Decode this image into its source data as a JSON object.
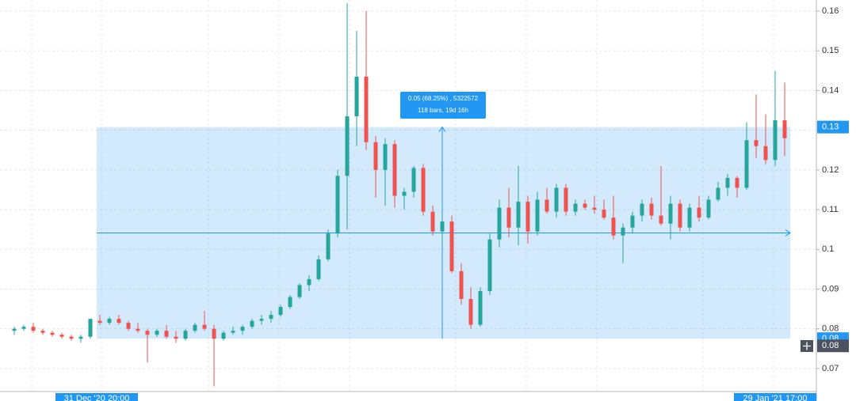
{
  "chart_data": {
    "type": "candlestick",
    "ylim": [
      0.0642,
      0.1628
    ],
    "yticks": [
      0.07,
      0.08,
      0.09,
      0.1,
      0.11,
      0.12,
      0.13,
      0.14,
      0.15,
      0.16
    ],
    "grid": true,
    "up_color": "#26a69a",
    "down_color": "#ef5350",
    "candles": {
      "open": [
        0.0795,
        0.08,
        0.0805,
        0.0795,
        0.079,
        0.0785,
        0.078,
        0.0775,
        0.078,
        0.082,
        0.0815,
        0.0825,
        0.0815,
        0.08,
        0.0795,
        0.0785,
        0.0795,
        0.078,
        0.0775,
        0.0795,
        0.081,
        0.08,
        0.0775,
        0.079,
        0.0795,
        0.0805,
        0.082,
        0.0825,
        0.0835,
        0.0855,
        0.088,
        0.091,
        0.0925,
        0.0975,
        0.104,
        0.1185,
        0.1335,
        0.1435,
        0.127,
        0.12,
        0.1265,
        0.1135,
        0.1145,
        0.1205,
        0.1095,
        0.1045,
        0.107,
        0.0945,
        0.0875,
        0.081,
        0.0895,
        0.1025,
        0.1105,
        0.1055,
        0.112,
        0.1045,
        0.1125,
        0.1095,
        0.1155,
        0.1095,
        0.1115,
        0.1105,
        0.11,
        0.108,
        0.1035,
        0.1055,
        0.1085,
        0.1115,
        0.1085,
        0.1065,
        0.1115,
        0.1055,
        0.1105,
        0.108,
        0.1125,
        0.1155,
        0.118,
        0.1155,
        0.1275,
        0.126,
        0.1225,
        0.1325
      ],
      "high": [
        0.0805,
        0.081,
        0.0815,
        0.08,
        0.0795,
        0.079,
        0.0785,
        0.0785,
        0.0825,
        0.0835,
        0.083,
        0.0835,
        0.082,
        0.0815,
        0.08,
        0.08,
        0.081,
        0.0795,
        0.08,
        0.0815,
        0.0845,
        0.081,
        0.0795,
        0.0805,
        0.081,
        0.0825,
        0.0835,
        0.0845,
        0.086,
        0.0885,
        0.0915,
        0.0935,
        0.0985,
        0.105,
        0.12,
        0.162,
        0.155,
        0.16,
        0.1285,
        0.128,
        0.1275,
        0.1155,
        0.121,
        0.1215,
        0.111,
        0.109,
        0.1085,
        0.0965,
        0.0905,
        0.0905,
        0.104,
        0.1125,
        0.1155,
        0.121,
        0.1135,
        0.1145,
        0.1155,
        0.1165,
        0.1165,
        0.1125,
        0.1125,
        0.1135,
        0.1125,
        0.1135,
        0.1065,
        0.1095,
        0.1125,
        0.113,
        0.121,
        0.1135,
        0.1125,
        0.1115,
        0.1135,
        0.1135,
        0.117,
        0.119,
        0.1185,
        0.132,
        0.139,
        0.134,
        0.145,
        0.142
      ],
      "low": [
        0.0785,
        0.0795,
        0.079,
        0.0785,
        0.078,
        0.0775,
        0.077,
        0.0765,
        0.0775,
        0.081,
        0.081,
        0.081,
        0.0795,
        0.079,
        0.0715,
        0.078,
        0.0775,
        0.0765,
        0.077,
        0.079,
        0.0795,
        0.0655,
        0.077,
        0.0785,
        0.0785,
        0.08,
        0.081,
        0.0815,
        0.083,
        0.085,
        0.0875,
        0.0895,
        0.092,
        0.097,
        0.103,
        0.105,
        0.126,
        0.125,
        0.113,
        0.111,
        0.1105,
        0.11,
        0.113,
        0.1085,
        0.1035,
        0.1015,
        0.094,
        0.086,
        0.08,
        0.0805,
        0.0885,
        0.1005,
        0.103,
        0.101,
        0.1015,
        0.1035,
        0.109,
        0.108,
        0.1085,
        0.1085,
        0.11,
        0.109,
        0.1075,
        0.1025,
        0.0965,
        0.104,
        0.107,
        0.1075,
        0.106,
        0.1025,
        0.1045,
        0.1045,
        0.107,
        0.1075,
        0.112,
        0.1135,
        0.113,
        0.115,
        0.123,
        0.1215,
        0.121,
        0.1235
      ],
      "close": [
        0.08,
        0.0805,
        0.0795,
        0.079,
        0.0785,
        0.078,
        0.0775,
        0.078,
        0.0825,
        0.0815,
        0.0825,
        0.0815,
        0.08,
        0.0795,
        0.0785,
        0.0795,
        0.078,
        0.0775,
        0.0795,
        0.081,
        0.08,
        0.0775,
        0.079,
        0.0795,
        0.0805,
        0.082,
        0.0825,
        0.0835,
        0.0855,
        0.088,
        0.091,
        0.0925,
        0.0975,
        0.104,
        0.1185,
        0.1335,
        0.1435,
        0.127,
        0.12,
        0.1265,
        0.1135,
        0.1145,
        0.1205,
        0.1095,
        0.1045,
        0.107,
        0.0945,
        0.0875,
        0.081,
        0.0895,
        0.1025,
        0.1105,
        0.1055,
        0.112,
        0.1045,
        0.1125,
        0.1095,
        0.1155,
        0.1095,
        0.1115,
        0.1105,
        0.11,
        0.108,
        0.1035,
        0.1055,
        0.1085,
        0.1115,
        0.1085,
        0.1065,
        0.1115,
        0.1055,
        0.1105,
        0.108,
        0.1125,
        0.1155,
        0.118,
        0.1155,
        0.1275,
        0.126,
        0.1225,
        0.1325,
        0.128
      ]
    },
    "measure": {
      "high": {
        "value": 0.1308,
        "label": "0.13"
      },
      "low": {
        "value": 0.0775,
        "label": "0.08"
      },
      "change": "0.05 (68.25%) , 5322572",
      "span": "118 bars, 19d 16h",
      "start_label": "31 Dec '20  20:00",
      "end_label": "29 Jan '21  17:00",
      "color": "#2196f3"
    },
    "crosshair_price": {
      "value": 0.0757,
      "label": "0.08"
    }
  }
}
